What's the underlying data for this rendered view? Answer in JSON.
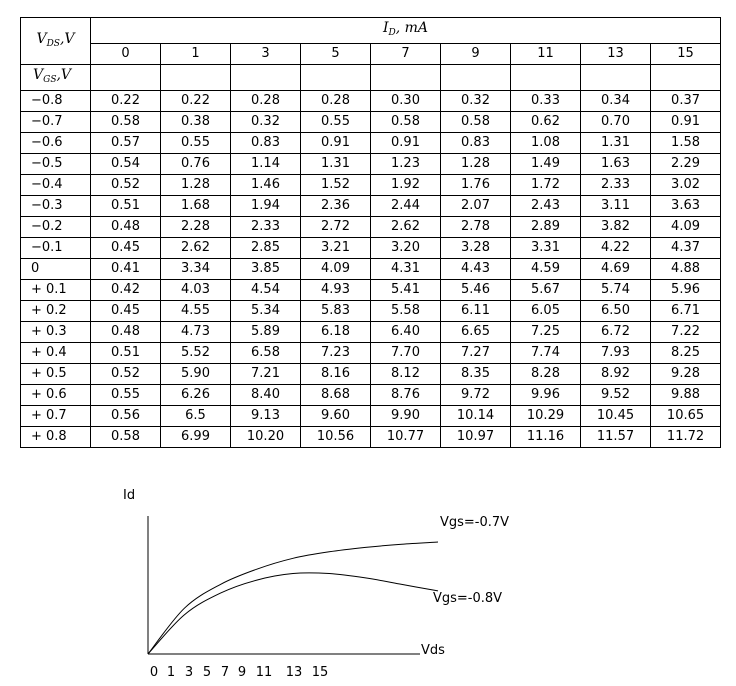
{
  "table": {
    "corner_top": "V",
    "corner_top_sub": "DS",
    "corner_top_unit": ",V",
    "id_header": "I",
    "id_header_sub": "D",
    "id_header_unit": ", mA",
    "gs_label": "V",
    "gs_label_sub": "GS",
    "gs_label_unit": ",V",
    "columns": [
      "0",
      "1",
      "3",
      "5",
      "7",
      "9",
      "11",
      "13",
      "15"
    ],
    "rows": [
      {
        "vgs": "−0.8",
        "values": [
          "0.22",
          "0.22",
          "0.28",
          "0.28",
          "0.30",
          "0.32",
          "0.33",
          "0.34",
          "0.37"
        ]
      },
      {
        "vgs": "−0.7",
        "values": [
          "0.58",
          "0.38",
          "0.32",
          "0.55",
          "0.58",
          "0.58",
          "0.62",
          "0.70",
          "0.91"
        ]
      },
      {
        "vgs": "−0.6",
        "values": [
          "0.57",
          "0.55",
          "0.83",
          "0.91",
          "0.91",
          "0.83",
          "1.08",
          "1.31",
          "1.58"
        ]
      },
      {
        "vgs": "−0.5",
        "values": [
          "0.54",
          "0.76",
          "1.14",
          "1.31",
          "1.23",
          "1.28",
          "1.49",
          "1.63",
          "2.29"
        ]
      },
      {
        "vgs": "−0.4",
        "values": [
          "0.52",
          "1.28",
          "1.46",
          "1.52",
          "1.92",
          "1.76",
          "1.72",
          "2.33",
          "3.02"
        ]
      },
      {
        "vgs": "−0.3",
        "values": [
          "0.51",
          "1.68",
          "1.94",
          "2.36",
          "2.44",
          "2.07",
          "2.43",
          "3.11",
          "3.63"
        ]
      },
      {
        "vgs": "−0.2",
        "values": [
          "0.48",
          "2.28",
          "2.33",
          "2.72",
          "2.62",
          "2.78",
          "2.89",
          "3.82",
          "4.09"
        ]
      },
      {
        "vgs": "−0.1",
        "values": [
          "0.45",
          "2.62",
          "2.85",
          "3.21",
          "3.20",
          "3.28",
          "3.31",
          "4.22",
          "4.37"
        ]
      },
      {
        "vgs": "0",
        "values": [
          "0.41",
          "3.34",
          "3.85",
          "4.09",
          "4.31",
          "4.43",
          "4.59",
          "4.69",
          "4.88"
        ]
      },
      {
        "vgs": "+ 0.1",
        "values": [
          "0.42",
          "4.03",
          "4.54",
          "4.93",
          "5.41",
          "5.46",
          "5.67",
          "5.74",
          "5.96"
        ]
      },
      {
        "vgs": "+ 0.2",
        "values": [
          "0.45",
          "4.55",
          "5.34",
          "5.83",
          "5.58",
          "6.11",
          "6.05",
          "6.50",
          "6.71"
        ]
      },
      {
        "vgs": "+ 0.3",
        "values": [
          "0.48",
          "4.73",
          "5.89",
          "6.18",
          "6.40",
          "6.65",
          "7.25",
          "6.72",
          "7.22"
        ]
      },
      {
        "vgs": "+ 0.4",
        "values": [
          "0.51",
          "5.52",
          "6.58",
          "7.23",
          "7.70",
          "7.27",
          "7.74",
          "7.93",
          "8.25"
        ]
      },
      {
        "vgs": "+ 0.5",
        "values": [
          "0.52",
          "5.90",
          "7.21",
          "8.16",
          "8.12",
          "8.35",
          "8.28",
          "8.92",
          "9.28"
        ]
      },
      {
        "vgs": "+ 0.6",
        "values": [
          "0.55",
          "6.26",
          "8.40",
          "8.68",
          "8.76",
          "9.72",
          "9.96",
          "9.52",
          "9.88"
        ]
      },
      {
        "vgs": "+ 0.7",
        "values": [
          "0.56",
          "6.5",
          "9.13",
          "9.60",
          "9.90",
          "10.14",
          "10.29",
          "10.45",
          "10.65"
        ]
      },
      {
        "vgs": "+ 0.8",
        "values": [
          "0.58",
          "6.99",
          "10.20",
          "10.56",
          "10.77",
          "10.97",
          "11.16",
          "11.57",
          "11.72"
        ]
      }
    ]
  },
  "chart_data": {
    "type": "line",
    "ylabel": "Id",
    "xlabel": "Vds",
    "x_tick_labels": [
      "0",
      "1",
      "3",
      "5",
      "7",
      "9",
      "11",
      "13",
      "15"
    ],
    "series": [
      {
        "name": "Vgs=-0.7V",
        "x": [
          0,
          2,
          4,
          6,
          8,
          10,
          12,
          14,
          16
        ],
        "y": [
          0,
          42,
          64,
          78,
          88,
          94,
          98,
          101,
          103
        ]
      },
      {
        "name": "Vgs=-0.8V",
        "x": [
          0,
          2,
          4,
          6,
          8,
          10,
          12,
          14,
          16
        ],
        "y": [
          0,
          36,
          56,
          68,
          74,
          74,
          70,
          64,
          58
        ]
      }
    ]
  }
}
